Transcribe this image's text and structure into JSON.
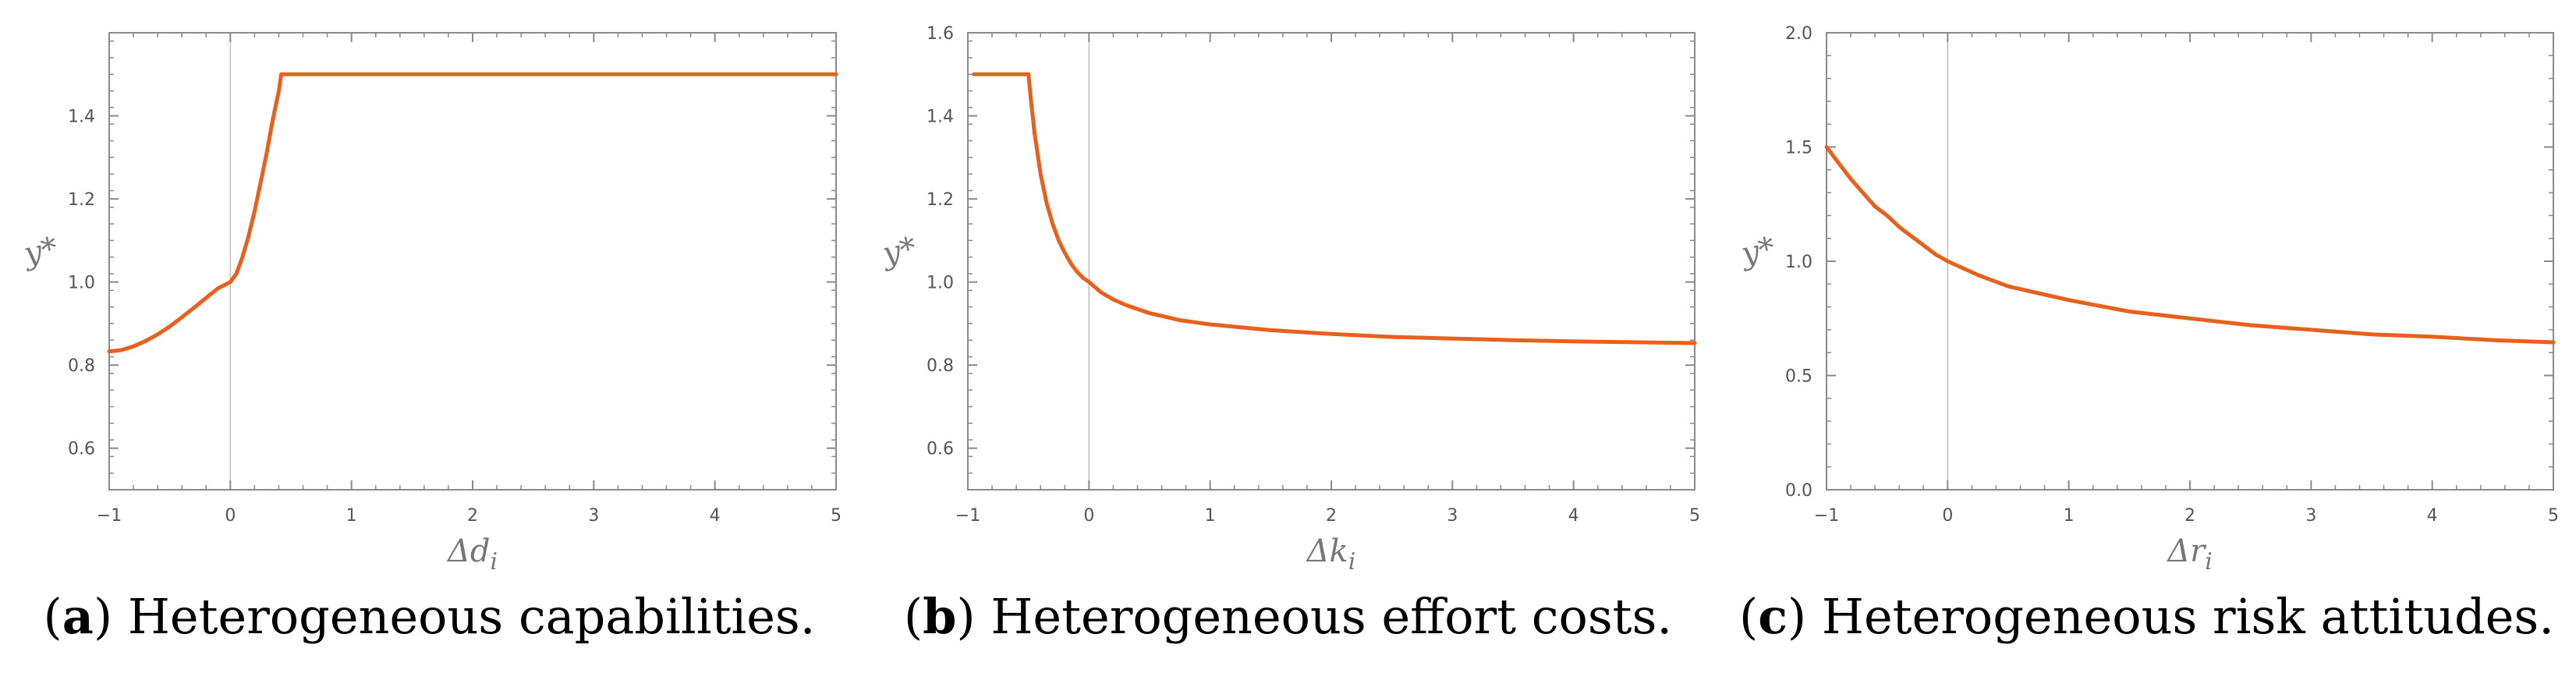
{
  "chart_data": [
    {
      "type": "line",
      "caption_letter": "a",
      "caption_text": "Heterogeneous capabilities.",
      "xlabel": "Δd",
      "xlabel_sub": "i",
      "ylabel": "y*",
      "xlim": [
        -1,
        5
      ],
      "ylim": [
        0.5,
        1.6
      ],
      "xticks": [
        -1,
        0,
        1,
        2,
        3,
        4,
        5
      ],
      "yticks": [
        0.6,
        0.8,
        1.0,
        1.2,
        1.4
      ],
      "ytick_labels": [
        "0.6",
        "0.8",
        "1.0",
        "1.2",
        "1.4"
      ],
      "vline_x": 0,
      "color": "#e8601c",
      "series": [
        {
          "x": [
            -1.0,
            -0.9,
            -0.8,
            -0.7,
            -0.6,
            -0.5,
            -0.4,
            -0.3,
            -0.2,
            -0.1,
            0.0,
            0.05,
            0.1,
            0.15,
            0.2,
            0.25,
            0.3,
            0.35,
            0.4,
            0.42,
            1.0,
            2.0,
            3.0,
            4.0,
            5.0
          ],
          "y": [
            0.833,
            0.836,
            0.845,
            0.858,
            0.874,
            0.893,
            0.915,
            0.938,
            0.962,
            0.985,
            1.0,
            1.02,
            1.06,
            1.11,
            1.17,
            1.24,
            1.31,
            1.39,
            1.46,
            1.5,
            1.5,
            1.5,
            1.5,
            1.5,
            1.5
          ]
        }
      ]
    },
    {
      "type": "line",
      "caption_letter": "b",
      "caption_text": "Heterogeneous effort costs.",
      "xlabel": "Δk",
      "xlabel_sub": "i",
      "ylabel": "y*",
      "xlim": [
        -1,
        5
      ],
      "ylim": [
        0.5,
        1.6
      ],
      "xticks": [
        -1,
        0,
        1,
        2,
        3,
        4,
        5
      ],
      "yticks": [
        0.6,
        0.8,
        1.0,
        1.2,
        1.4,
        1.6
      ],
      "ytick_labels": [
        "0.6",
        "0.8",
        "1.0",
        "1.2",
        "1.4",
        "1.6"
      ],
      "vline_x": 0,
      "color": "#e8601c",
      "series": [
        {
          "x": [
            -0.95,
            -0.5,
            -0.48,
            -0.45,
            -0.4,
            -0.35,
            -0.3,
            -0.25,
            -0.2,
            -0.15,
            -0.1,
            -0.05,
            0.0,
            0.1,
            0.2,
            0.3,
            0.5,
            0.75,
            1.0,
            1.5,
            2.0,
            2.5,
            3.0,
            3.5,
            4.0,
            4.5,
            5.0
          ],
          "y": [
            1.5,
            1.5,
            1.44,
            1.36,
            1.26,
            1.19,
            1.14,
            1.1,
            1.07,
            1.045,
            1.025,
            1.01,
            1.0,
            0.975,
            0.958,
            0.945,
            0.925,
            0.908,
            0.898,
            0.884,
            0.875,
            0.868,
            0.864,
            0.86,
            0.857,
            0.855,
            0.853
          ]
        }
      ]
    },
    {
      "type": "line",
      "caption_letter": "c",
      "caption_text": "Heterogeneous risk attitudes.",
      "xlabel": "Δr",
      "xlabel_sub": "i",
      "ylabel": "y*",
      "xlim": [
        -1,
        5
      ],
      "ylim": [
        0.0,
        2.0
      ],
      "xticks": [
        -1,
        0,
        1,
        2,
        3,
        4,
        5
      ],
      "yticks": [
        0.0,
        0.5,
        1.0,
        1.5,
        2.0
      ],
      "ytick_labels": [
        "0.0",
        "0.5",
        "1.0",
        "1.5",
        "2.0"
      ],
      "vline_x": 0,
      "color": "#e8601c",
      "series": [
        {
          "x": [
            -1.0,
            -0.9,
            -0.8,
            -0.7,
            -0.6,
            -0.5,
            -0.4,
            -0.3,
            -0.2,
            -0.1,
            0.0,
            0.25,
            0.5,
            0.75,
            1.0,
            1.5,
            2.0,
            2.5,
            3.0,
            3.5,
            4.0,
            4.5,
            5.0
          ],
          "y": [
            1.5,
            1.43,
            1.36,
            1.3,
            1.24,
            1.2,
            1.15,
            1.11,
            1.07,
            1.03,
            1.0,
            0.94,
            0.89,
            0.86,
            0.83,
            0.78,
            0.75,
            0.72,
            0.7,
            0.68,
            0.67,
            0.655,
            0.645
          ]
        }
      ]
    }
  ]
}
